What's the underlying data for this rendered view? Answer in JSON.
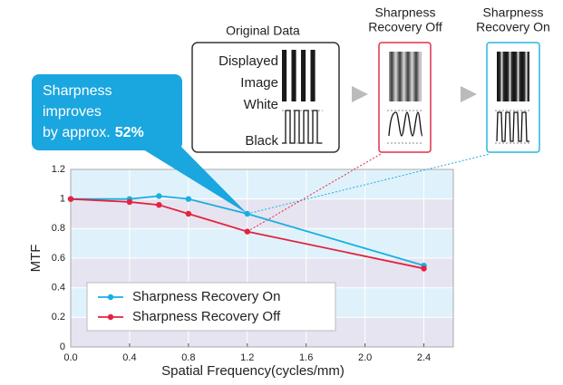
{
  "chart_data": {
    "type": "line",
    "x_label": "Spatial Frequency(cycles/mm)",
    "y_label": "MTF",
    "x": [
      0,
      0.4,
      0.6,
      0.8,
      1.2,
      2.4
    ],
    "series": [
      {
        "name": "Sharpness Recovery On",
        "color": "#19afe1",
        "values": [
          1.0,
          1.0,
          1.02,
          1.0,
          0.9,
          0.55
        ]
      },
      {
        "name": "Sharpness Recovery Off",
        "color": "#e3233f",
        "values": [
          1.0,
          0.98,
          0.96,
          0.9,
          0.78,
          0.53
        ]
      }
    ],
    "xlim": [
      0,
      2.6
    ],
    "ylim": [
      0,
      1.2
    ],
    "xticks": [
      {
        "value": 0,
        "label": "0.0"
      },
      0.4,
      0.8,
      1.2,
      1.6,
      {
        "value": 2,
        "label": "2.0"
      },
      2.4
    ],
    "yticks": [
      0,
      0.2,
      0.4,
      0.6,
      0.8,
      1,
      1.2
    ],
    "grid": true,
    "legend": "lower left",
    "annotation": {
      "lines": [
        "Sharpness",
        "improves",
        "by approx."
      ],
      "emphasis": "52%"
    },
    "panels": [
      {
        "title": [
          "Original Data"
        ],
        "labels": [
          "Displayed",
          "Image",
          "White",
          "Black"
        ]
      },
      {
        "title": [
          "Sharpness",
          "Recovery Off"
        ]
      },
      {
        "title": [
          "Sharpness",
          "Recovery On"
        ]
      }
    ]
  }
}
